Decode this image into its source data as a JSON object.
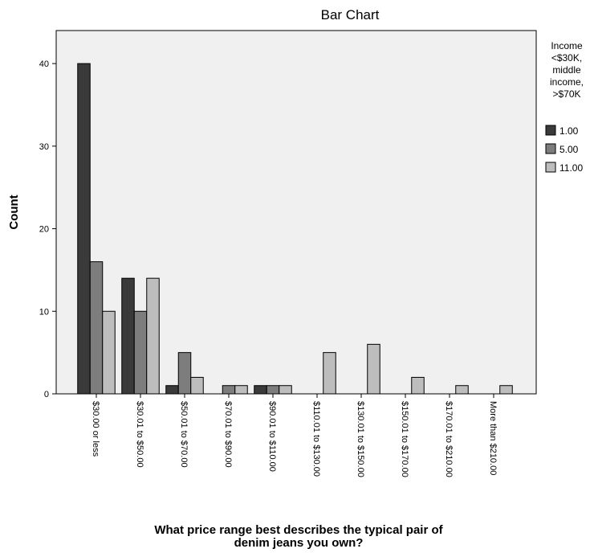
{
  "chart_data": {
    "type": "bar",
    "title": "Bar Chart",
    "ylabel": "Count",
    "xlabel_lines": [
      "What price range best describes the typical pair of",
      "denim jeans you own?"
    ],
    "ylim": [
      0,
      44
    ],
    "yticks": [
      0,
      10,
      20,
      30,
      40
    ],
    "grid": false,
    "legend_position": "right",
    "legend_title_lines": [
      "Income",
      "<$30K,",
      "middle",
      "income,",
      ">$70K"
    ],
    "categories": [
      "$30.00 or less",
      "$30.01 to $50.00",
      "$50.01 to $70.00",
      "$70.01 to $90.00",
      "$90.01 to $110.00",
      "$110.01 to $130.00",
      "$130.01 to $150.00",
      "$150.01 to $170.00",
      "$170.01 to $210.00",
      "More than $210.00"
    ],
    "series": [
      {
        "name": "1.00",
        "color": "#3a3a3a",
        "values": [
          40,
          14,
          1,
          0,
          1,
          0,
          0,
          0,
          0,
          0
        ]
      },
      {
        "name": "5.00",
        "color": "#7d7d7d",
        "values": [
          16,
          10,
          5,
          1,
          1,
          0,
          0,
          0,
          0,
          0
        ]
      },
      {
        "name": "11.00",
        "color": "#bdbdbd",
        "values": [
          10,
          14,
          2,
          1,
          1,
          5,
          6,
          2,
          1,
          1
        ]
      }
    ],
    "plot_background": "#f0f0f0"
  }
}
